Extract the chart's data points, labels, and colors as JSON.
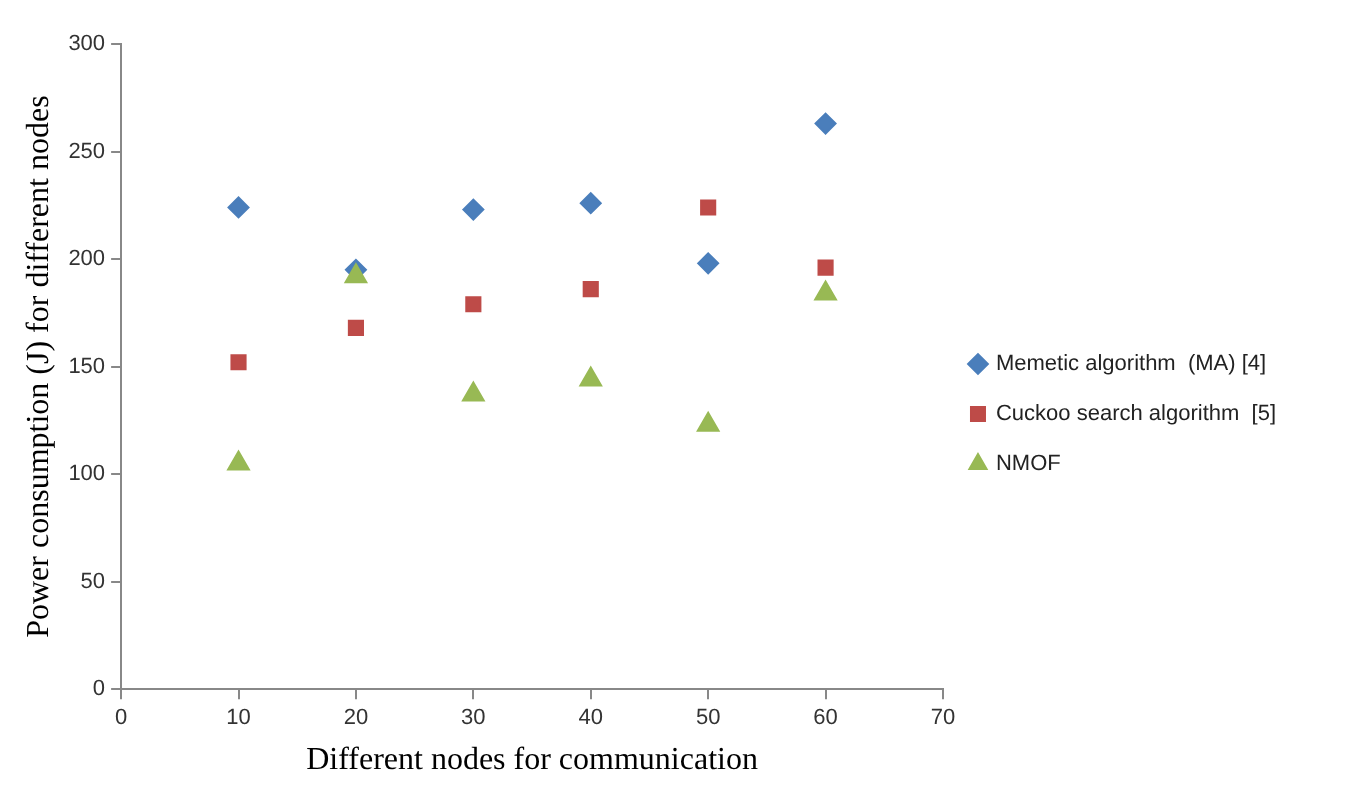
{
  "chart_data": {
    "type": "scatter",
    "xlabel": "Different nodes for communication",
    "ylabel": "Power consumption (J) for different nodes",
    "x": [
      10,
      20,
      30,
      40,
      50,
      60
    ],
    "series": [
      {
        "name": "Memetic algorithm  (MA) [4]",
        "color": "#4a7ebb",
        "marker": "diamond",
        "values": [
          224,
          195,
          223,
          226,
          198,
          263
        ]
      },
      {
        "name": "Cuckoo search algorithm  [5]",
        "color": "#be4b48",
        "marker": "square",
        "values": [
          152,
          168,
          179,
          186,
          224,
          196
        ]
      },
      {
        "name": "NMOF",
        "color": "#98b954",
        "marker": "triangle",
        "values": [
          105,
          192,
          137,
          144,
          123,
          184
        ]
      }
    ],
    "xlim": [
      0,
      70
    ],
    "xticks": [
      0,
      10,
      20,
      30,
      40,
      50,
      60,
      70
    ],
    "ylim": [
      0,
      300
    ],
    "yticks": [
      0,
      50,
      100,
      150,
      200,
      250,
      300
    ],
    "grid": false,
    "legend": "right"
  }
}
